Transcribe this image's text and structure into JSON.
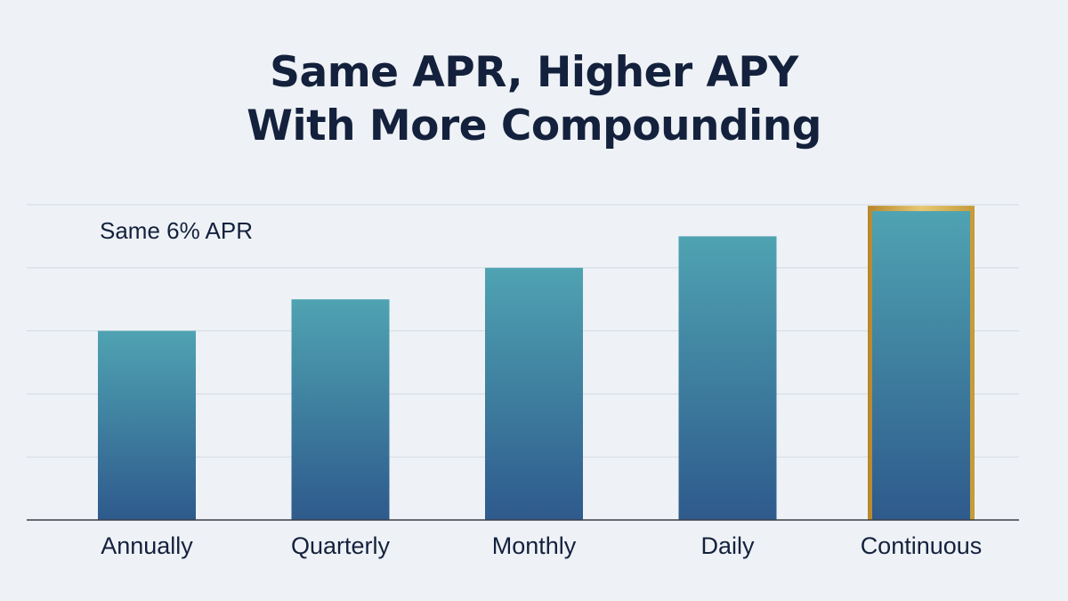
{
  "title_line1": "Same APR, Higher APY",
  "title_line2": "With More Compounding",
  "chart_data": {
    "type": "bar",
    "title": "Same APR, Higher APY With More Compounding",
    "annotation": "Same 6% APR",
    "categories": [
      "Annually",
      "Quarterly",
      "Monthly",
      "Daily",
      "Continuous"
    ],
    "values": [
      3.0,
      3.5,
      4.0,
      4.5,
      4.9
    ],
    "ylim": [
      0,
      5
    ],
    "grid": true,
    "highlight_index": 4,
    "colors": {
      "bar_top": "#4fa3b2",
      "bar_bottom": "#2e5a8c",
      "highlight_border": "#c9a13a",
      "grid": "#d3d9e1",
      "axis": "#3a3f47",
      "text": "#14213d"
    }
  }
}
